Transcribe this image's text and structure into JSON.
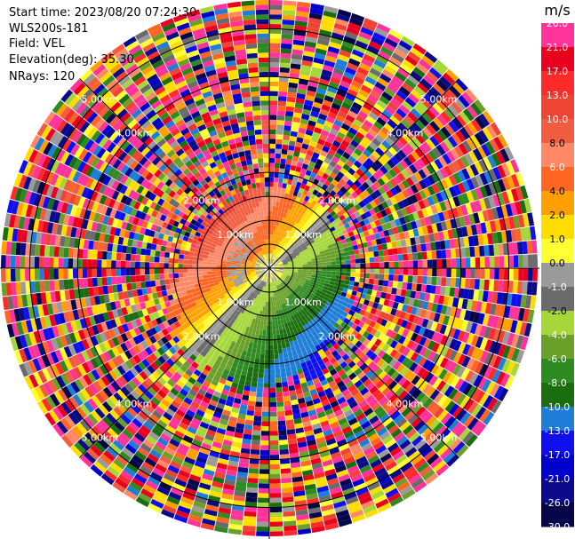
{
  "header": {
    "start_time": "Start time: 2023/08/20 07:24:30",
    "instrument": "WLS200s-181",
    "field": "Field: VEL",
    "elevation": "Elevation(deg): 35.30",
    "nrays": "NRays: 120"
  },
  "chart_data": {
    "type": "heatmap",
    "projection": "polar-ppi",
    "n_rays": 120,
    "field": "VEL",
    "units": "m/s",
    "range_rings_km": [
      1.0,
      2.0,
      4.0,
      5.0
    ],
    "ring_labels": [
      "1.00km",
      "2.00km",
      "4.00km",
      "5.00km"
    ],
    "colorbar": {
      "title": "m/s",
      "ticks": [
        "26.0",
        "21.0",
        "17.0",
        "13.0",
        "10.0",
        "8.0",
        "6.0",
        "4.0",
        "2.0",
        "1.0",
        "0.0",
        "-1.0",
        "-2.0",
        "-4.0",
        "-6.0",
        "-8.0",
        "-10.0",
        "-13.0",
        "-17.0",
        "-21.0",
        "-26.0",
        "-30.0"
      ],
      "colors": [
        "#ff3399",
        "#e8001e",
        "#ff2a2a",
        "#ee4433",
        "#f25c40",
        "#ff8866",
        "#ff6622",
        "#ffa000",
        "#ffdd00",
        "#ffff33",
        "#9a9a9a",
        "#6b6b6b",
        "#a5d63a",
        "#6aa02a",
        "#2e8b22",
        "#1a6e10",
        "#1e7dd6",
        "#1010ee",
        "#0000cc",
        "#0a0a8a",
        "#05054a"
      ]
    },
    "vlim": [
      -30.0,
      26.0
    ],
    "max_range_km": 5.6,
    "pattern": "near-range coherent velocity field (positive yellow/orange to north-west, negative green/blue to south-east), noisy random values beyond ~2 km"
  }
}
